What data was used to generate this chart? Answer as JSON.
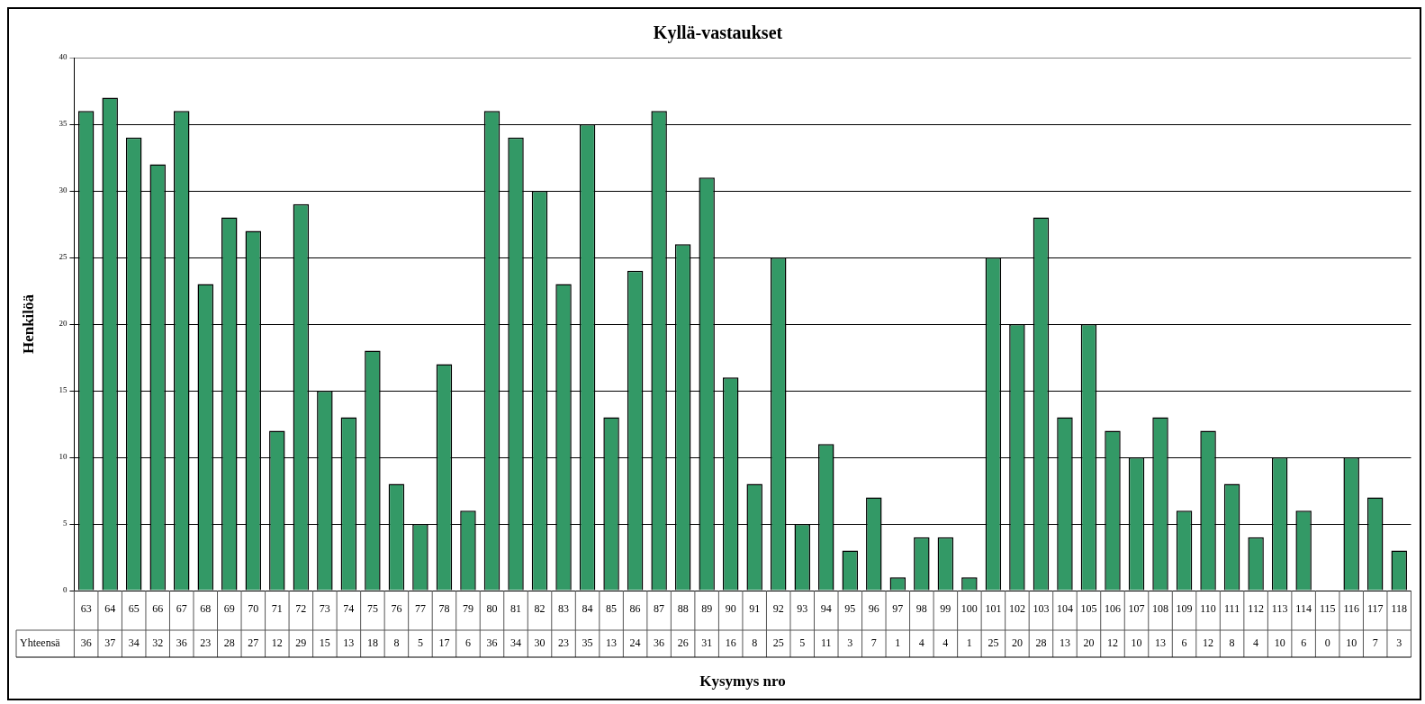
{
  "chart_data": {
    "type": "bar",
    "title": "Kyllä-vastaukset",
    "xlabel": "Kysymys nro",
    "ylabel": "Henkilöä",
    "categories": [
      "63",
      "64",
      "65",
      "66",
      "67",
      "68",
      "69",
      "70",
      "71",
      "72",
      "73",
      "74",
      "75",
      "76",
      "77",
      "78",
      "79",
      "80",
      "81",
      "82",
      "83",
      "84",
      "85",
      "86",
      "87",
      "88",
      "89",
      "90",
      "91",
      "92",
      "93",
      "94",
      "95",
      "96",
      "97",
      "98",
      "99",
      "100",
      "101",
      "102",
      "103",
      "104",
      "105",
      "106",
      "107",
      "108",
      "109",
      "110",
      "111",
      "112",
      "113",
      "114",
      "115",
      "116",
      "117",
      "118"
    ],
    "series": [
      {
        "name": "Yhteensä",
        "color": "#339966",
        "values": [
          36,
          37,
          34,
          32,
          36,
          23,
          28,
          27,
          12,
          29,
          15,
          13,
          18,
          8,
          5,
          17,
          6,
          36,
          34,
          30,
          23,
          35,
          13,
          24,
          36,
          26,
          31,
          16,
          8,
          25,
          5,
          11,
          3,
          7,
          1,
          4,
          4,
          1,
          25,
          20,
          28,
          13,
          20,
          12,
          10,
          13,
          6,
          12,
          8,
          4,
          10,
          6,
          0,
          10,
          7,
          3
        ]
      }
    ],
    "ylim": [
      0,
      40
    ],
    "yticks": [
      0,
      5,
      10,
      15,
      20,
      25,
      30,
      35,
      40
    ],
    "grid": "y",
    "data_labels": true
  }
}
